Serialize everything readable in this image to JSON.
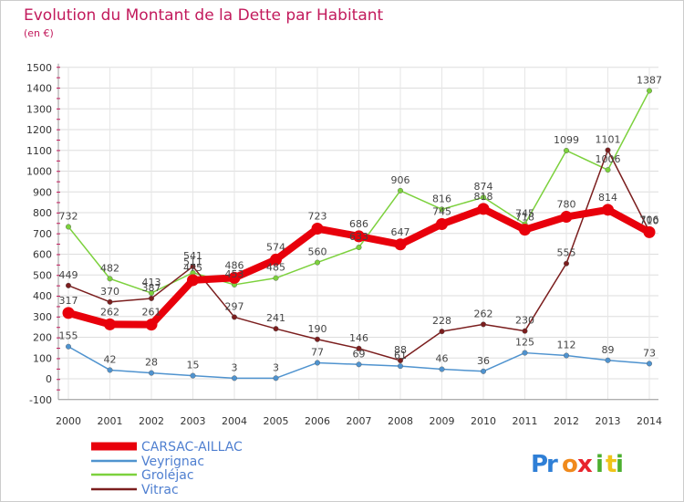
{
  "chart_data": {
    "type": "line",
    "title": "Evolution du Montant de la Dette par Habitant",
    "subtitle": "(en €)",
    "xlabel": "",
    "ylabel": "",
    "x": [
      "2000",
      "2001",
      "2002",
      "2003",
      "2004",
      "2005",
      "2006",
      "2007",
      "2008",
      "2009",
      "2010",
      "2011",
      "2012",
      "2013",
      "2014"
    ],
    "ylim": [
      -100,
      1500
    ],
    "yticks": [
      "-100",
      "0",
      "100",
      "200",
      "300",
      "400",
      "500",
      "600",
      "700",
      "800",
      "900",
      "1000",
      "1100",
      "1200",
      "1300",
      "1400",
      "1500"
    ],
    "grid": true,
    "legend_position": "bottom-left",
    "series": [
      {
        "name": "CARSAC-AILLAC",
        "color": "#e8000b",
        "values": [
          317,
          262,
          261,
          475,
          486,
          574,
          723,
          686,
          647,
          745,
          818,
          718,
          780,
          814,
          706
        ]
      },
      {
        "name": "Veyrignac",
        "color": "#4f93cf",
        "values": [
          155,
          42,
          28,
          15,
          3,
          3,
          77,
          69,
          61,
          46,
          36,
          125,
          112,
          89,
          73
        ]
      },
      {
        "name": "Groléjac",
        "color": "#7cd13d",
        "values": [
          732,
          482,
          413,
          511,
          453,
          485,
          560,
          633,
          906,
          816,
          874,
          745,
          1099,
          1006,
          1387
        ]
      },
      {
        "name": "Vitrac",
        "color": "#7b1e1e",
        "values": [
          449,
          370,
          387,
          541,
          297,
          241,
          190,
          146,
          88,
          228,
          262,
          230,
          555,
          1101,
          710
        ]
      }
    ]
  },
  "brand": {
    "text": "Proxiti"
  }
}
